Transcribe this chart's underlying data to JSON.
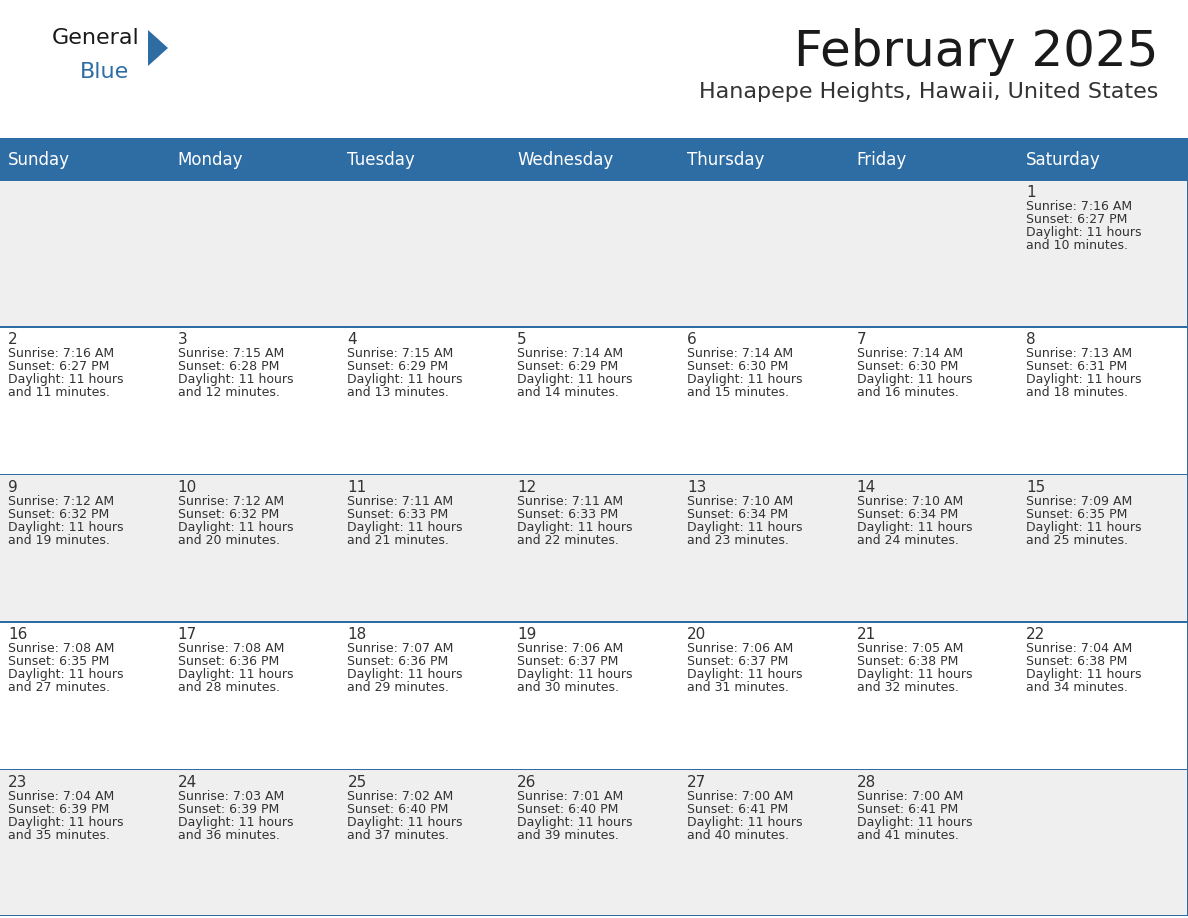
{
  "title": "February 2025",
  "subtitle": "Hanapepe Heights, Hawaii, United States",
  "days_of_week": [
    "Sunday",
    "Monday",
    "Tuesday",
    "Wednesday",
    "Thursday",
    "Friday",
    "Saturday"
  ],
  "header_bg": "#2E6DA4",
  "header_text": "#FFFFFF",
  "cell_bg_odd": "#EFEFEF",
  "cell_bg_even": "#FFFFFF",
  "border_color": "#2E6DA4",
  "day_number_color": "#333333",
  "info_text_color": "#333333",
  "title_color": "#1a1a1a",
  "subtitle_color": "#333333",
  "logo_general_color": "#1a1a1a",
  "logo_blue_color": "#2E6DA4",
  "days": [
    {
      "date": 1,
      "col": 6,
      "row": 0,
      "sunrise": "7:16 AM",
      "sunset": "6:27 PM",
      "daylight_h": "11 hours",
      "daylight_m": "and 10 minutes."
    },
    {
      "date": 2,
      "col": 0,
      "row": 1,
      "sunrise": "7:16 AM",
      "sunset": "6:27 PM",
      "daylight_h": "11 hours",
      "daylight_m": "and 11 minutes."
    },
    {
      "date": 3,
      "col": 1,
      "row": 1,
      "sunrise": "7:15 AM",
      "sunset": "6:28 PM",
      "daylight_h": "11 hours",
      "daylight_m": "and 12 minutes."
    },
    {
      "date": 4,
      "col": 2,
      "row": 1,
      "sunrise": "7:15 AM",
      "sunset": "6:29 PM",
      "daylight_h": "11 hours",
      "daylight_m": "and 13 minutes."
    },
    {
      "date": 5,
      "col": 3,
      "row": 1,
      "sunrise": "7:14 AM",
      "sunset": "6:29 PM",
      "daylight_h": "11 hours",
      "daylight_m": "and 14 minutes."
    },
    {
      "date": 6,
      "col": 4,
      "row": 1,
      "sunrise": "7:14 AM",
      "sunset": "6:30 PM",
      "daylight_h": "11 hours",
      "daylight_m": "and 15 minutes."
    },
    {
      "date": 7,
      "col": 5,
      "row": 1,
      "sunrise": "7:14 AM",
      "sunset": "6:30 PM",
      "daylight_h": "11 hours",
      "daylight_m": "and 16 minutes."
    },
    {
      "date": 8,
      "col": 6,
      "row": 1,
      "sunrise": "7:13 AM",
      "sunset": "6:31 PM",
      "daylight_h": "11 hours",
      "daylight_m": "and 18 minutes."
    },
    {
      "date": 9,
      "col": 0,
      "row": 2,
      "sunrise": "7:12 AM",
      "sunset": "6:32 PM",
      "daylight_h": "11 hours",
      "daylight_m": "and 19 minutes."
    },
    {
      "date": 10,
      "col": 1,
      "row": 2,
      "sunrise": "7:12 AM",
      "sunset": "6:32 PM",
      "daylight_h": "11 hours",
      "daylight_m": "and 20 minutes."
    },
    {
      "date": 11,
      "col": 2,
      "row": 2,
      "sunrise": "7:11 AM",
      "sunset": "6:33 PM",
      "daylight_h": "11 hours",
      "daylight_m": "and 21 minutes."
    },
    {
      "date": 12,
      "col": 3,
      "row": 2,
      "sunrise": "7:11 AM",
      "sunset": "6:33 PM",
      "daylight_h": "11 hours",
      "daylight_m": "and 22 minutes."
    },
    {
      "date": 13,
      "col": 4,
      "row": 2,
      "sunrise": "7:10 AM",
      "sunset": "6:34 PM",
      "daylight_h": "11 hours",
      "daylight_m": "and 23 minutes."
    },
    {
      "date": 14,
      "col": 5,
      "row": 2,
      "sunrise": "7:10 AM",
      "sunset": "6:34 PM",
      "daylight_h": "11 hours",
      "daylight_m": "and 24 minutes."
    },
    {
      "date": 15,
      "col": 6,
      "row": 2,
      "sunrise": "7:09 AM",
      "sunset": "6:35 PM",
      "daylight_h": "11 hours",
      "daylight_m": "and 25 minutes."
    },
    {
      "date": 16,
      "col": 0,
      "row": 3,
      "sunrise": "7:08 AM",
      "sunset": "6:35 PM",
      "daylight_h": "11 hours",
      "daylight_m": "and 27 minutes."
    },
    {
      "date": 17,
      "col": 1,
      "row": 3,
      "sunrise": "7:08 AM",
      "sunset": "6:36 PM",
      "daylight_h": "11 hours",
      "daylight_m": "and 28 minutes."
    },
    {
      "date": 18,
      "col": 2,
      "row": 3,
      "sunrise": "7:07 AM",
      "sunset": "6:36 PM",
      "daylight_h": "11 hours",
      "daylight_m": "and 29 minutes."
    },
    {
      "date": 19,
      "col": 3,
      "row": 3,
      "sunrise": "7:06 AM",
      "sunset": "6:37 PM",
      "daylight_h": "11 hours",
      "daylight_m": "and 30 minutes."
    },
    {
      "date": 20,
      "col": 4,
      "row": 3,
      "sunrise": "7:06 AM",
      "sunset": "6:37 PM",
      "daylight_h": "11 hours",
      "daylight_m": "and 31 minutes."
    },
    {
      "date": 21,
      "col": 5,
      "row": 3,
      "sunrise": "7:05 AM",
      "sunset": "6:38 PM",
      "daylight_h": "11 hours",
      "daylight_m": "and 32 minutes."
    },
    {
      "date": 22,
      "col": 6,
      "row": 3,
      "sunrise": "7:04 AM",
      "sunset": "6:38 PM",
      "daylight_h": "11 hours",
      "daylight_m": "and 34 minutes."
    },
    {
      "date": 23,
      "col": 0,
      "row": 4,
      "sunrise": "7:04 AM",
      "sunset": "6:39 PM",
      "daylight_h": "11 hours",
      "daylight_m": "and 35 minutes."
    },
    {
      "date": 24,
      "col": 1,
      "row": 4,
      "sunrise": "7:03 AM",
      "sunset": "6:39 PM",
      "daylight_h": "11 hours",
      "daylight_m": "and 36 minutes."
    },
    {
      "date": 25,
      "col": 2,
      "row": 4,
      "sunrise": "7:02 AM",
      "sunset": "6:40 PM",
      "daylight_h": "11 hours",
      "daylight_m": "and 37 minutes."
    },
    {
      "date": 26,
      "col": 3,
      "row": 4,
      "sunrise": "7:01 AM",
      "sunset": "6:40 PM",
      "daylight_h": "11 hours",
      "daylight_m": "and 39 minutes."
    },
    {
      "date": 27,
      "col": 4,
      "row": 4,
      "sunrise": "7:00 AM",
      "sunset": "6:41 PM",
      "daylight_h": "11 hours",
      "daylight_m": "and 40 minutes."
    },
    {
      "date": 28,
      "col": 5,
      "row": 4,
      "sunrise": "7:00 AM",
      "sunset": "6:41 PM",
      "daylight_h": "11 hours",
      "daylight_m": "and 41 minutes."
    }
  ]
}
